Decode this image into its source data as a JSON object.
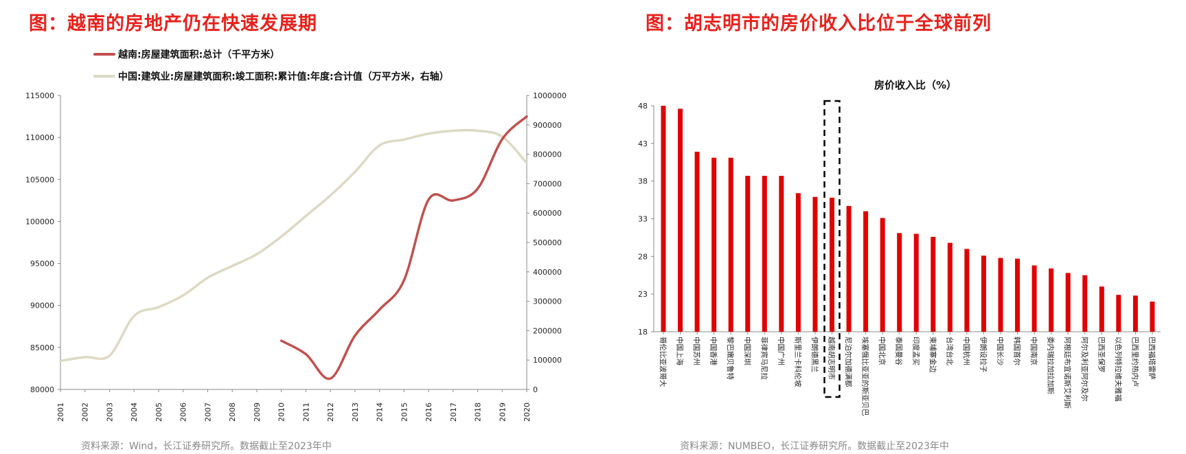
{
  "left_title": "图：越南的房地产仍在快速发展期",
  "right_title": "图：胡志明市的房价收入比位于全球前列",
  "left_source": "资料来源：Wind，长江证券研究所。数据截止至2023年中",
  "right_source": "资料来源：NUMBEO，长江证券研究所。数据截止至2023年中",
  "colors": {
    "accent": "#e8211c",
    "vietnam_line": "#c0504d",
    "china_line": "#ddd9c3",
    "bar": "#e00000"
  },
  "chart_data": [
    {
      "type": "line",
      "title": "",
      "x": [
        "2001",
        "2002",
        "2003",
        "2004",
        "2005",
        "2006",
        "2007",
        "2008",
        "2009",
        "2010",
        "2011",
        "2012",
        "2013",
        "2014",
        "2015",
        "2016",
        "2017",
        "2018",
        "2019",
        "2020"
      ],
      "series": [
        {
          "name": "越南:房屋建筑面积:总计（千平方米）",
          "axis": "left",
          "values": [
            null,
            null,
            null,
            null,
            null,
            null,
            null,
            null,
            null,
            85800,
            84200,
            81300,
            86400,
            89500,
            93000,
            102600,
            102500,
            103900,
            109800,
            112500
          ]
        },
        {
          "name": "中国:建筑业:房屋建筑面积:竣工面积:累计值:年度:合计值（万平方米，右轴）",
          "axis": "right",
          "values": [
            97000,
            110000,
            115000,
            250000,
            280000,
            320000,
            380000,
            420000,
            460000,
            520000,
            590000,
            660000,
            740000,
            830000,
            850000,
            870000,
            880000,
            880000,
            860000,
            770000
          ]
        }
      ],
      "left_axis": {
        "range": [
          80000,
          115000
        ],
        "ticks": [
          "80000",
          "85000",
          "90000",
          "95000",
          "100000",
          "105000",
          "110000",
          "115000"
        ]
      },
      "right_axis": {
        "range": [
          0,
          1000000
        ],
        "ticks": [
          "0",
          "100000",
          "200000",
          "300000",
          "400000",
          "500000",
          "600000",
          "700000",
          "800000",
          "900000",
          "1000000"
        ]
      },
      "legend_position": "top"
    },
    {
      "type": "bar",
      "title": "房价收入比（%）",
      "categories": [
        "哥伦比亚波哥大",
        "中国上海",
        "中国苏州",
        "中国香港",
        "黎巴嫩贝鲁特",
        "中国深圳",
        "菲律宾马尼拉",
        "中国广州",
        "斯里兰卡科伦坡",
        "伊朗德黑兰",
        "越南胡志明市",
        "尼泊尔加德满都",
        "埃塞俄比亚亚的斯亚贝巴",
        "中国北京",
        "泰国曼谷",
        "印度孟买",
        "柬埔寨金边",
        "台湾台北",
        "中国杭州",
        "伊朗设拉子",
        "中国长沙",
        "韩国首尔",
        "中国南京",
        "委内瑞拉加拉加斯",
        "阿根廷布宜诺斯艾利斯",
        "阿尔及利亚阿尔及尔",
        "巴西圣保罗",
        "以色列特拉维夫雅福",
        "巴西里约热内卢",
        "巴西福塔雷萨"
      ],
      "values": [
        48,
        47.6,
        41.9,
        41.1,
        41.1,
        38.7,
        38.7,
        38.7,
        36.4,
        35.9,
        35.8,
        34.7,
        34,
        33.1,
        31.1,
        31,
        30.6,
        29.8,
        29,
        28.1,
        27.8,
        27.7,
        26.8,
        26.4,
        25.8,
        25.5,
        24,
        22.9,
        22.8,
        22
      ],
      "ylim": [
        18,
        48
      ],
      "yticks": [
        "18",
        "23",
        "28",
        "33",
        "38",
        "43",
        "48"
      ],
      "highlighted": "越南胡志明市"
    }
  ]
}
